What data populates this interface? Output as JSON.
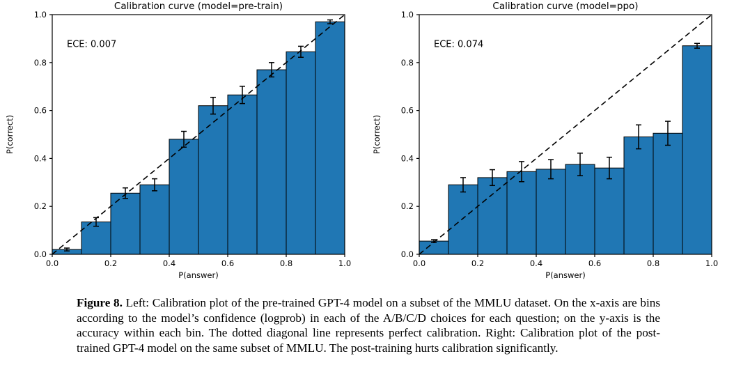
{
  "figure": {
    "caption_label": "Figure 8.",
    "caption_body": " Left: Calibration plot of the pre-trained GPT-4 model on a subset of the MMLU dataset. On the x-axis are bins according to the model’s confidence (logprob) in each of the A/B/C/D choices for each question; on the y-axis is the accuracy within each bin. The dotted diagonal line represents perfect calibration. Right: Calibration plot of the post-trained GPT-4 model on the same subset of MMLU. The post-training hurts calibration significantly."
  },
  "chart_data": [
    {
      "type": "bar",
      "title": "Calibration curve (model=pre-train)",
      "annotation": "ECE: 0.007",
      "xlabel": "P(answer)",
      "ylabel": "P(correct)",
      "xlim": [
        0.0,
        1.0
      ],
      "ylim": [
        0.0,
        1.0
      ],
      "xticks": [
        0.0,
        0.2,
        0.4,
        0.6,
        0.8,
        1.0
      ],
      "yticks": [
        0.0,
        0.2,
        0.4,
        0.6,
        0.8,
        1.0
      ],
      "bin_width": 0.1,
      "bin_centers": [
        0.05,
        0.15,
        0.25,
        0.35,
        0.45,
        0.55,
        0.65,
        0.75,
        0.85,
        0.95
      ],
      "values": [
        0.02,
        0.135,
        0.255,
        0.29,
        0.48,
        0.62,
        0.665,
        0.77,
        0.845,
        0.97
      ],
      "errors": [
        0.006,
        0.018,
        0.022,
        0.025,
        0.033,
        0.035,
        0.036,
        0.03,
        0.023,
        0.008
      ],
      "diagonal_line": "dashed y=x (perfect calibration)",
      "bar_color": "#2077b4",
      "bar_edge_color": "#000000",
      "error_bar_color": "#000000",
      "grid": false,
      "legend": "none"
    },
    {
      "type": "bar",
      "title": "Calibration curve (model=ppo)",
      "annotation": "ECE: 0.074",
      "xlabel": "P(answer)",
      "ylabel": "P(correct)",
      "xlim": [
        0.0,
        1.0
      ],
      "ylim": [
        0.0,
        1.0
      ],
      "xticks": [
        0.0,
        0.2,
        0.4,
        0.6,
        0.8,
        1.0
      ],
      "yticks": [
        0.0,
        0.2,
        0.4,
        0.6,
        0.8,
        1.0
      ],
      "bin_width": 0.1,
      "bin_centers": [
        0.05,
        0.15,
        0.25,
        0.35,
        0.45,
        0.55,
        0.65,
        0.75,
        0.85,
        0.95
      ],
      "values": [
        0.055,
        0.29,
        0.32,
        0.345,
        0.355,
        0.375,
        0.36,
        0.49,
        0.505,
        0.87
      ],
      "errors": [
        0.006,
        0.03,
        0.033,
        0.042,
        0.04,
        0.047,
        0.045,
        0.05,
        0.05,
        0.01
      ],
      "diagonal_line": "dashed y=x (perfect calibration)",
      "bar_color": "#2077b4",
      "bar_edge_color": "#000000",
      "error_bar_color": "#000000",
      "grid": false,
      "legend": "none"
    }
  ]
}
